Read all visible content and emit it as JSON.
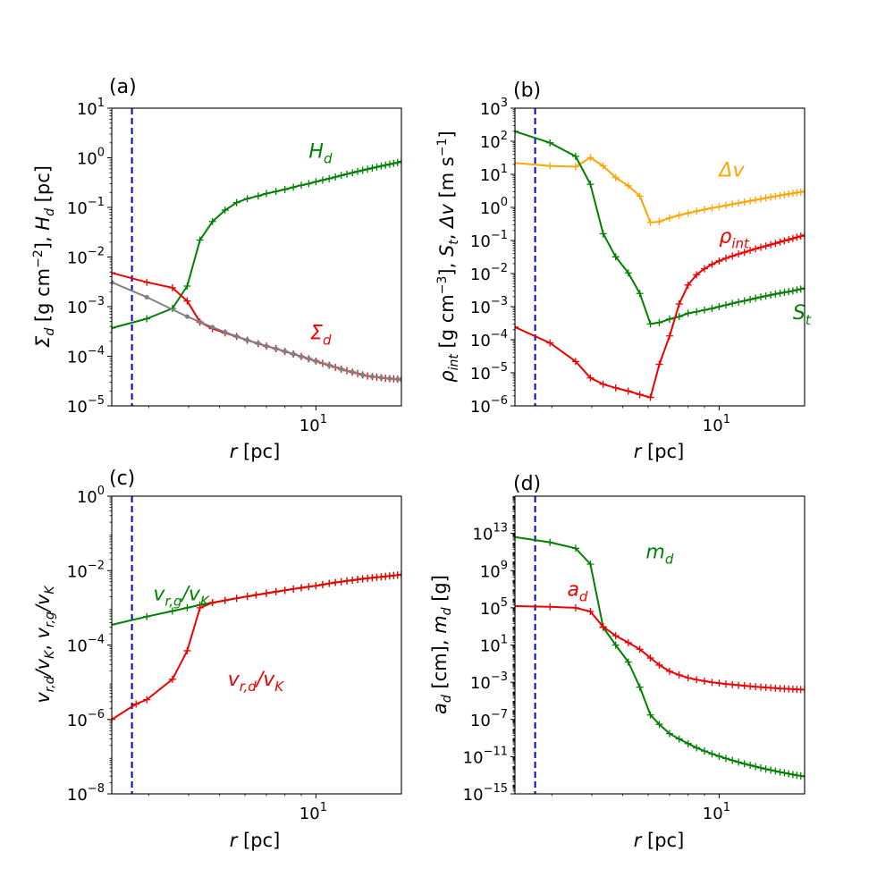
{
  "chart_data": [
    {
      "type": "line",
      "panel_label": "(a)",
      "xlabel": "r [pc]",
      "ylabel": "Σd [g cm⁻²], Hd [pc]",
      "xscale": "log",
      "yscale": "log",
      "xlim": [
        2.3,
        18.5
      ],
      "ylim": [
        1e-05,
        10
      ],
      "x_ticks": [
        {
          "v": 10,
          "label": "10^1"
        }
      ],
      "y_ticks": [
        {
          "v": 1e-05,
          "label": "10^-5"
        },
        {
          "v": 0.0001,
          "label": "10^-4"
        },
        {
          "v": 0.001,
          "label": "10^-3"
        },
        {
          "v": 0.01,
          "label": "10^-2"
        },
        {
          "v": 0.1,
          "label": "10^-1"
        },
        {
          "v": 1,
          "label": "10^0"
        },
        {
          "v": 10,
          "label": "10^1"
        }
      ],
      "vline": {
        "x": 2.66,
        "color": "#0000cc"
      },
      "series": [
        {
          "name": "Hd",
          "color": "#008000",
          "marker": "plus",
          "x": [
            2.3,
            2.96,
            3.56,
            3.96,
            4.34,
            4.75,
            5.2,
            5.65,
            6.1,
            6.6,
            7.0,
            7.5,
            8.0,
            8.5,
            9.0,
            9.5,
            10.0,
            10.5,
            11.0,
            11.5,
            12.0,
            12.5,
            13.0,
            13.5,
            14.0,
            14.5,
            15.0,
            15.5,
            16.0,
            16.5,
            17.0,
            17.5,
            18.0,
            18.5
          ],
          "y": [
            0.00037,
            0.00057,
            0.00092,
            0.0026,
            0.022,
            0.052,
            0.088,
            0.125,
            0.15,
            0.17,
            0.19,
            0.21,
            0.23,
            0.255,
            0.28,
            0.3,
            0.33,
            0.355,
            0.38,
            0.41,
            0.44,
            0.47,
            0.5,
            0.53,
            0.56,
            0.59,
            0.62,
            0.65,
            0.68,
            0.71,
            0.74,
            0.77,
            0.8,
            0.84
          ]
        },
        {
          "name": "Σd",
          "color": "#ee0000",
          "marker": "plus",
          "x": [
            2.3,
            2.96,
            3.56,
            3.96,
            4.34,
            4.75,
            5.2,
            5.65,
            6.1,
            6.6,
            7.0,
            7.5,
            8.0,
            8.5,
            9.0,
            9.5,
            10.0,
            10.5,
            11.0,
            11.5,
            12.0,
            12.5,
            13.0,
            13.5,
            14.0,
            14.5,
            15.0,
            15.5,
            16.0,
            16.5,
            17.0,
            17.5,
            18.0,
            18.5
          ],
          "y": [
            0.0048,
            0.0031,
            0.0024,
            0.0013,
            0.00049,
            0.00036,
            0.000295,
            0.00025,
            0.00021,
            0.00018,
            0.00016,
            0.000142,
            0.000125,
            0.000111,
            9.9e-05,
            8.9e-05,
            8e-05,
            7.2e-05,
            6.6e-05,
            6e-05,
            5.5e-05,
            5.1e-05,
            4.8e-05,
            4.5e-05,
            4.2e-05,
            4e-05,
            3.9e-05,
            3.8e-05,
            3.7e-05,
            3.6e-05,
            3.55e-05,
            3.5e-05,
            3.45e-05,
            3.4e-05
          ]
        },
        {
          "name": "grey",
          "color": "#808080",
          "marker": "dot",
          "x": [
            2.3,
            2.96,
            3.96,
            4.34,
            4.75,
            5.2,
            5.65,
            6.1,
            6.6,
            7.0,
            7.5,
            8.0,
            8.5,
            9.0,
            9.5,
            10.0,
            11.0,
            12.0,
            13.0,
            14.0,
            15.0,
            16.0,
            17.0,
            18.0,
            18.5
          ],
          "y": [
            0.0031,
            0.00155,
            0.00063,
            0.00049,
            0.000385,
            0.000305,
            0.000252,
            0.000212,
            0.000182,
            0.00016,
            0.000142,
            0.000125,
            0.000111,
            9.9e-05,
            8.9e-05,
            8e-05,
            6.6e-05,
            5.5e-05,
            4.8e-05,
            4.2e-05,
            3.9e-05,
            3.7e-05,
            3.55e-05,
            3.45e-05,
            3.4e-05
          ]
        }
      ],
      "annotations": [
        {
          "text": "H",
          "sub": "d",
          "x": 9.5,
          "y": 1.0,
          "color": "#008000"
        },
        {
          "text": "Σ",
          "sub": "d",
          "x": 9.6,
          "y": 0.00022,
          "color": "#ee0000"
        }
      ]
    },
    {
      "type": "line",
      "panel_label": "(b)",
      "xlabel": "r [pc]",
      "ylabel": "ρint [g cm⁻³], St, Δv [m s⁻¹]",
      "xscale": "log",
      "yscale": "log",
      "xlim": [
        2.3,
        18.5
      ],
      "ylim": [
        1e-06,
        1000
      ],
      "x_ticks": [
        {
          "v": 10,
          "label": "10^1"
        }
      ],
      "y_ticks": [
        {
          "v": 1e-06,
          "label": "10^-6"
        },
        {
          "v": 1e-05,
          "label": "10^-5"
        },
        {
          "v": 0.0001,
          "label": "10^-4"
        },
        {
          "v": 0.001,
          "label": "10^-3"
        },
        {
          "v": 0.01,
          "label": "10^-2"
        },
        {
          "v": 0.1,
          "label": "10^-1"
        },
        {
          "v": 1,
          "label": "10^0"
        },
        {
          "v": 10,
          "label": "10^1"
        },
        {
          "v": 100,
          "label": "10^2"
        },
        {
          "v": 1000,
          "label": "10^3"
        }
      ],
      "vline": {
        "x": 2.66,
        "color": "#0000cc"
      },
      "series": [
        {
          "name": "Δv",
          "color": "#ffa500",
          "marker": "plus",
          "x": [
            2.3,
            2.96,
            3.56,
            3.96,
            4.34,
            4.75,
            5.2,
            5.65,
            6.1,
            6.5,
            7.0,
            7.5,
            8.0,
            8.5,
            9.0,
            9.5,
            10.0,
            10.5,
            11.0,
            11.5,
            12.0,
            12.5,
            13.0,
            13.5,
            14.0,
            14.5,
            15.0,
            15.5,
            16.0,
            16.5,
            17.0,
            17.5,
            18.0,
            18.5
          ],
          "y": [
            22,
            18,
            17,
            32,
            18,
            8,
            4.5,
            2.2,
            0.35,
            0.37,
            0.48,
            0.58,
            0.67,
            0.77,
            0.86,
            0.96,
            1.05,
            1.15,
            1.25,
            1.35,
            1.45,
            1.56,
            1.68,
            1.8,
            1.93,
            2.05,
            2.18,
            2.3,
            2.42,
            2.55,
            2.68,
            2.8,
            2.92,
            3.05
          ]
        },
        {
          "name": "St",
          "color": "#008000",
          "marker": "plus",
          "x": [
            2.3,
            2.96,
            3.56,
            3.96,
            4.34,
            4.75,
            5.2,
            5.65,
            6.1,
            6.5,
            7.0,
            7.5,
            8.0,
            8.5,
            9.0,
            9.5,
            10.0,
            10.5,
            11.0,
            11.5,
            12.0,
            12.5,
            13.0,
            13.5,
            14.0,
            14.5,
            15.0,
            15.5,
            16.0,
            16.5,
            17.0,
            17.5,
            18.0,
            18.5
          ],
          "y": [
            200,
            90,
            35,
            5,
            0.16,
            0.032,
            0.0105,
            0.0025,
            0.0003,
            0.00033,
            0.00042,
            0.0005,
            0.00063,
            0.0007,
            0.00079,
            0.00088,
            0.001,
            0.00112,
            0.00125,
            0.00138,
            0.0015,
            0.00165,
            0.0018,
            0.00195,
            0.0021,
            0.00225,
            0.0024,
            0.00255,
            0.0027,
            0.00285,
            0.003,
            0.0032,
            0.0034,
            0.0036
          ]
        },
        {
          "name": "ρint",
          "color": "#ee0000",
          "marker": "plus",
          "x": [
            2.3,
            2.96,
            3.56,
            3.96,
            4.34,
            4.75,
            5.2,
            5.65,
            6.1,
            6.5,
            7.0,
            7.5,
            8.0,
            8.5,
            9.0,
            9.5,
            10.0,
            10.5,
            11.0,
            11.5,
            12.0,
            12.5,
            13.0,
            13.5,
            14.0,
            14.5,
            15.0,
            15.5,
            16.0,
            16.5,
            17.0,
            17.5,
            18.0,
            18.5
          ],
          "y": [
            0.00024,
            8e-05,
            2.2e-05,
            7e-06,
            4.5e-06,
            3.5e-06,
            2.8e-06,
            2.2e-06,
            1.8e-06,
            1.8e-05,
            0.00013,
            0.0012,
            0.0045,
            0.0092,
            0.014,
            0.019,
            0.024,
            0.029,
            0.034,
            0.039,
            0.044,
            0.05,
            0.056,
            0.062,
            0.068,
            0.075,
            0.082,
            0.09,
            0.098,
            0.106,
            0.115,
            0.125,
            0.135,
            0.145
          ]
        }
      ],
      "annotations": [
        {
          "text": "Δv",
          "sub": "",
          "x": 10.0,
          "y": 8.5,
          "color": "#ffa500"
        },
        {
          "text": "ρ",
          "sub": "int",
          "x": 10.0,
          "y": 0.085,
          "color": "#ee0000"
        },
        {
          "text": "S",
          "sub": "t",
          "x": 17.0,
          "y": 0.00042,
          "color": "#008000"
        }
      ]
    },
    {
      "type": "line",
      "panel_label": "(c)",
      "xlabel": "r [pc]",
      "ylabel": "vr,d/vK, vr,g/vK",
      "xscale": "log",
      "yscale": "log",
      "xlim": [
        2.3,
        18.5
      ],
      "ylim": [
        1e-08,
        1
      ],
      "x_ticks": [
        {
          "v": 10,
          "label": "10^1"
        }
      ],
      "y_ticks": [
        {
          "v": 1e-08,
          "label": "10^-8"
        },
        {
          "v": 1e-06,
          "label": "10^-6"
        },
        {
          "v": 0.0001,
          "label": "10^-4"
        },
        {
          "v": 0.01,
          "label": "10^-2"
        },
        {
          "v": 1,
          "label": "10^0"
        }
      ],
      "vline": {
        "x": 2.66,
        "color": "#0000cc"
      },
      "series": [
        {
          "name": "vr,g/vK",
          "color": "#008000",
          "marker": "plus",
          "x": [
            2.3,
            2.96,
            3.56,
            3.96,
            4.34,
            4.75,
            5.2,
            5.65,
            6.1,
            6.5,
            7.0,
            7.5,
            8.0,
            8.5,
            9.0,
            9.5,
            10.0,
            10.5,
            11.0,
            11.5,
            12.0,
            12.5,
            13.0,
            13.5,
            14.0,
            14.5,
            15.0,
            15.5,
            16.0,
            16.5,
            17.0,
            17.5,
            18.0,
            18.5
          ],
          "y": [
            0.00035,
            0.00058,
            0.00082,
            0.001,
            0.0012,
            0.00138,
            0.00158,
            0.0018,
            0.00202,
            0.00222,
            0.00246,
            0.0027,
            0.00295,
            0.0032,
            0.00345,
            0.0037,
            0.0039,
            0.0042,
            0.0045,
            0.0048,
            0.005,
            0.0053,
            0.0055,
            0.0058,
            0.006,
            0.0062,
            0.0064,
            0.0066,
            0.0068,
            0.007,
            0.0072,
            0.0074,
            0.0076,
            0.0078
          ]
        },
        {
          "name": "vr,d/vK",
          "color": "#ee0000",
          "marker": "plus",
          "x": [
            2.3,
            2.74,
            2.96,
            3.56,
            3.96,
            4.34,
            4.75,
            5.2,
            5.65,
            6.1,
            6.5,
            7.0,
            7.5,
            8.0,
            8.5,
            9.0,
            9.5,
            10.0,
            10.5,
            11.0,
            11.5,
            12.0,
            12.5,
            13.0,
            13.5,
            14.0,
            14.5,
            15.0,
            15.5,
            16.0,
            16.5,
            17.0,
            17.5,
            18.0,
            18.5
          ],
          "y": [
            1e-06,
            2.6e-06,
            3.4e-06,
            1.2e-05,
            7e-05,
            0.001,
            0.00138,
            0.00158,
            0.0018,
            0.00202,
            0.00222,
            0.00246,
            0.0027,
            0.00295,
            0.0032,
            0.00345,
            0.0037,
            0.0039,
            0.0042,
            0.0045,
            0.0048,
            0.005,
            0.0053,
            0.0055,
            0.0058,
            0.006,
            0.0062,
            0.0064,
            0.0066,
            0.0068,
            0.007,
            0.0072,
            0.0074,
            0.0076,
            0.0078
          ]
        }
      ],
      "annotations": [
        {
          "text": "v",
          "sub": "r,g",
          "tail": "/v",
          "tailsub": "K",
          "x": 3.1,
          "y": 0.0016,
          "color": "#008000"
        },
        {
          "text": "v",
          "sub": "r,d",
          "tail": "/v",
          "tailsub": "K",
          "x": 5.3,
          "y": 8e-06,
          "color": "#ee0000"
        }
      ]
    },
    {
      "type": "line",
      "panel_label": "(d)",
      "xlabel": "r [pc]",
      "ylabel": "ad [cm], md [g]",
      "xscale": "log",
      "yscale": "log",
      "xlim": [
        2.3,
        18.5
      ],
      "ylim": [
        1e-15,
        1e+17
      ],
      "x_ticks": [
        {
          "v": 10,
          "label": "10^1"
        }
      ],
      "y_ticks": [
        {
          "v": 1e-15,
          "label": "10^-15"
        },
        {
          "v": 1e-11,
          "label": "10^-11"
        },
        {
          "v": 1e-07,
          "label": "10^-7"
        },
        {
          "v": 0.001,
          "label": "10^-3"
        },
        {
          "v": 10,
          "label": "10^1"
        },
        {
          "v": 100000.0,
          "label": "10^5"
        },
        {
          "v": 1000000000.0,
          "label": "10^9"
        },
        {
          "v": 10000000000000.0,
          "label": "10^13"
        }
      ],
      "vline": {
        "x": 2.66,
        "color": "#0000cc"
      },
      "series": [
        {
          "name": "md",
          "color": "#008000",
          "marker": "plus",
          "x": [
            2.3,
            2.96,
            3.56,
            3.96,
            4.34,
            4.75,
            5.2,
            5.65,
            6.1,
            6.5,
            7.0,
            7.5,
            8.0,
            8.5,
            9.0,
            9.5,
            10.0,
            10.5,
            11.0,
            11.5,
            12.0,
            12.5,
            13.0,
            13.5,
            14.0,
            14.5,
            15.0,
            15.5,
            16.0,
            16.5,
            17.0,
            17.5,
            18.0,
            18.5
          ],
          "y": [
            4000000000000.0,
            1100000000000.0,
            250000000000.0,
            5000000000.0,
            800,
            10,
            0.15,
            0.0003,
            3e-07,
            3e-08,
            3e-09,
            8e-10,
            2.5e-10,
            9e-11,
            4e-11,
            2e-11,
            1.1e-11,
            6.5e-12,
            4e-12,
            2.6e-12,
            1.7e-12,
            1.2e-12,
            8.5e-13,
            6.2e-13,
            4.7e-13,
            3.6e-13,
            2.8e-13,
            2.2e-13,
            1.8e-13,
            1.45e-13,
            1.2e-13,
            1e-13,
            8.5e-14,
            7.5e-14
          ]
        },
        {
          "name": "ad",
          "color": "#ee0000",
          "marker": "plus",
          "x": [
            2.3,
            2.96,
            3.56,
            3.96,
            4.34,
            4.75,
            5.2,
            5.65,
            6.1,
            6.5,
            7.0,
            7.5,
            8.0,
            8.5,
            9.0,
            9.5,
            10.0,
            10.5,
            11.0,
            11.5,
            12.0,
            12.5,
            13.0,
            13.5,
            14.0,
            14.5,
            15.0,
            15.5,
            16.0,
            16.5,
            17.0,
            17.5,
            18.0,
            18.5
          ],
          "y": [
            150000,
            130000,
            100000,
            40000,
            900,
            100,
            18,
            3.5,
            0.4,
            0.07,
            0.015,
            0.006,
            0.003,
            0.0019,
            0.0013,
            0.00098,
            0.0008,
            0.00065,
            0.00055,
            0.00048,
            0.00042,
            0.00037,
            0.00033,
            0.0003,
            0.00027,
            0.00025,
            0.00023,
            0.00021,
            0.0002,
            0.00019,
            0.00018,
            0.00017,
            0.000165,
            0.00016
          ]
        }
      ],
      "annotations": [
        {
          "text": "m",
          "sub": "d",
          "x": 5.9,
          "y": 20000000000.0,
          "color": "#008000"
        },
        {
          "text": "a",
          "sub": "d",
          "x": 3.35,
          "y": 2000000.0,
          "color": "#ee0000"
        }
      ]
    }
  ]
}
